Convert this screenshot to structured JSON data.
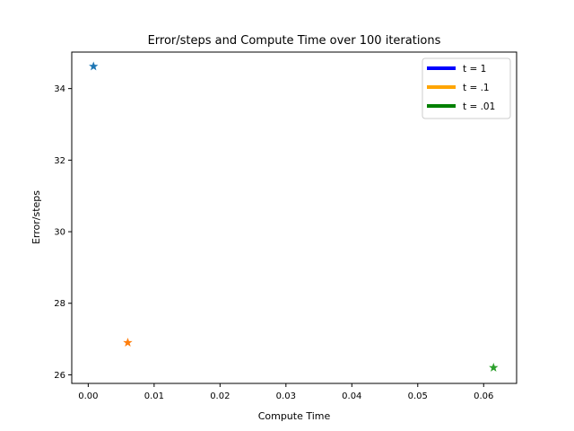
{
  "chart_data": {
    "type": "scatter",
    "title": "Error/steps and Compute Time over 100 iterations",
    "xlabel": "Compute Time",
    "ylabel": "Error/steps",
    "xlim": [
      -0.0025,
      0.065
    ],
    "ylim": [
      25.76,
      35.02
    ],
    "xticks": [
      0.0,
      0.01,
      0.02,
      0.03,
      0.04,
      0.05,
      0.06
    ],
    "xtick_labels": [
      "0.00",
      "0.01",
      "0.02",
      "0.03",
      "0.04",
      "0.05",
      "0.06"
    ],
    "yticks": [
      26,
      28,
      30,
      32,
      34
    ],
    "ytick_labels": [
      "26",
      "28",
      "30",
      "32",
      "34"
    ],
    "grid": false,
    "legend_position": "top-right",
    "marker": "star",
    "points": [
      {
        "x": 0.0008,
        "y": 34.62,
        "color": "#1f77b4"
      },
      {
        "x": 0.006,
        "y": 26.9,
        "color": "#ff7f0e"
      },
      {
        "x": 0.0615,
        "y": 26.2,
        "color": "#2ca02c"
      }
    ],
    "legend": [
      {
        "label": "t = 1",
        "color": "#0000ff"
      },
      {
        "label": "t = .1",
        "color": "#ffa500"
      },
      {
        "label": "t = .01",
        "color": "#008000"
      }
    ]
  }
}
